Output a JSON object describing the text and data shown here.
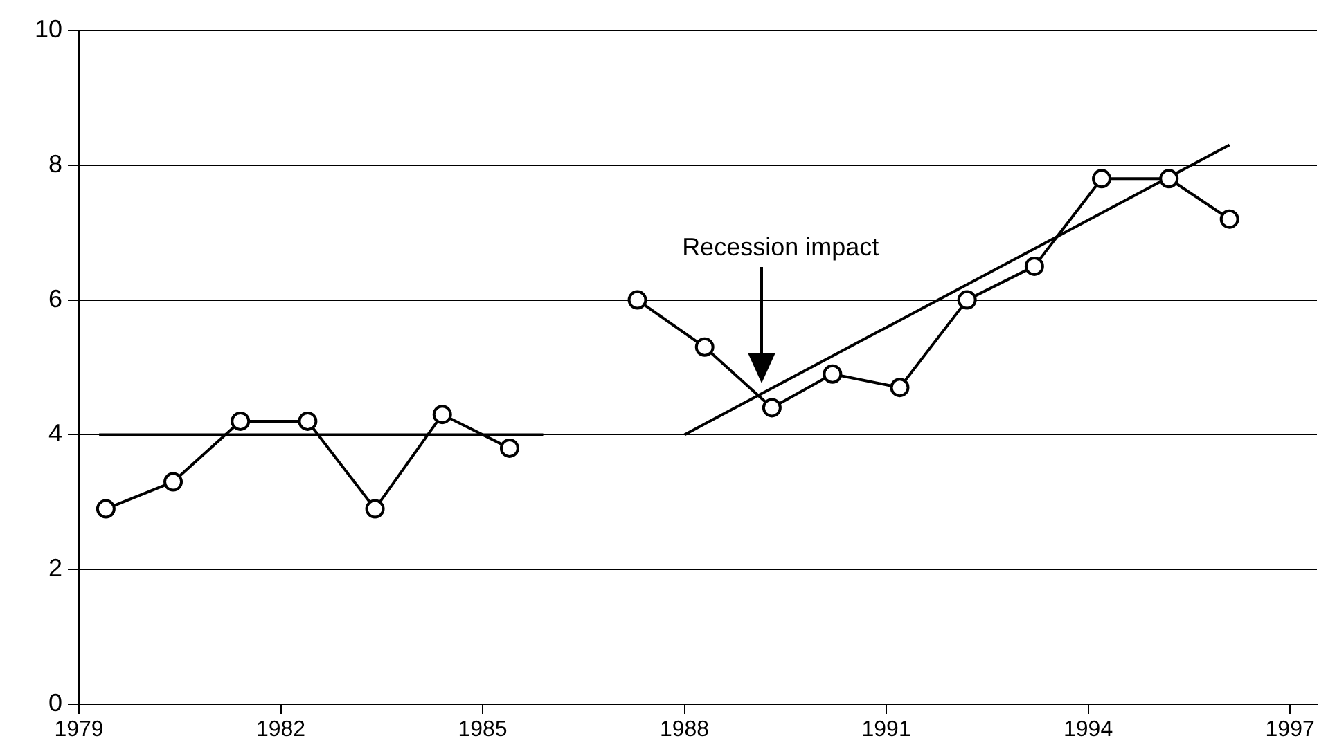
{
  "chart_data": {
    "type": "line",
    "xlim": [
      1979,
      1997.4
    ],
    "xticks": [
      1979,
      1982,
      1985,
      1988,
      1991,
      1994,
      1997
    ],
    "ylim": [
      0,
      10
    ],
    "yticks": [
      0,
      2,
      4,
      6,
      8,
      10
    ],
    "grid": "y",
    "legend": false,
    "marker": "circle",
    "line_style": "solid",
    "series": [
      {
        "color": "#000000",
        "x": [
          1979.4,
          1980.4,
          1981.4,
          1982.4,
          1983.4,
          1984.4,
          1985.4
        ],
        "values": [
          2.9,
          3.3,
          4.2,
          4.2,
          2.9,
          4.3,
          3.8
        ]
      },
      {
        "color": "#000000",
        "x": [
          1987.3,
          1988.3,
          1989.3,
          1990.2,
          1991.2,
          1992.2,
          1993.2,
          1994.2,
          1995.2,
          1996.1
        ],
        "values": [
          6.0,
          5.3,
          4.4,
          4.9,
          4.7,
          6.0,
          6.5,
          7.8,
          7.8,
          7.2
        ]
      },
      {
        "type": "line",
        "marker": "none",
        "color": "#000000",
        "x": [
          1979.3,
          1985.9
        ],
        "values": [
          4.0,
          4.0
        ]
      },
      {
        "type": "line",
        "marker": "none",
        "color": "#000000",
        "x": [
          1988.0,
          1996.1
        ],
        "values": [
          4.0,
          8.3
        ]
      }
    ],
    "annotations": [
      "Recession impact"
    ]
  }
}
